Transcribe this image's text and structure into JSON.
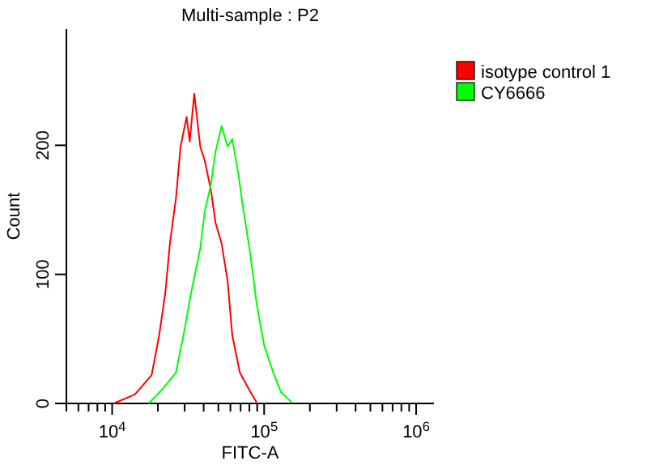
{
  "chart_data": {
    "type": "line",
    "title": "Multi-sample : P2",
    "xlabel": "FITC-A",
    "ylabel": "Count",
    "log": "x",
    "xlim": [
      5000,
      1310000
    ],
    "ylim": [
      0,
      290
    ],
    "xticks": [
      {
        "value": 5000,
        "label": null
      },
      {
        "value": 6000,
        "label": null
      },
      {
        "value": 7000,
        "label": null
      },
      {
        "value": 8000,
        "label": null
      },
      {
        "value": 9000,
        "label": null
      },
      {
        "value": 10000,
        "label": "10$^{4}$"
      },
      {
        "value": 20000,
        "label": null
      },
      {
        "value": 30000,
        "label": null
      },
      {
        "value": 40000,
        "label": null
      },
      {
        "value": 50000,
        "label": null
      },
      {
        "value": 60000,
        "label": null
      },
      {
        "value": 70000,
        "label": null
      },
      {
        "value": 80000,
        "label": null
      },
      {
        "value": 90000,
        "label": null
      },
      {
        "value": 100000,
        "label": "10$^{5}$"
      },
      {
        "value": 200000,
        "label": null
      },
      {
        "value": 300000,
        "label": null
      },
      {
        "value": 400000,
        "label": null
      },
      {
        "value": 500000,
        "label": null
      },
      {
        "value": 600000,
        "label": null
      },
      {
        "value": 700000,
        "label": null
      },
      {
        "value": 800000,
        "label": null
      },
      {
        "value": 900000,
        "label": null
      },
      {
        "value": 1000000,
        "label": "10$^{6}$"
      }
    ],
    "yticks": [
      0,
      100,
      200
    ],
    "legend": "right",
    "grid": false,
    "marker": "none",
    "series": [
      {
        "name": "isotype control 1",
        "color": "#ff0000",
        "x": [
          10230,
          14130,
          18200,
          20400,
          22400,
          24000,
          26300,
          28200,
          30900,
          32400,
          34700,
          38000,
          40700,
          44700,
          47900,
          52500,
          57500,
          61700,
          69200,
          79400,
          89100
        ],
        "values": [
          0,
          7,
          22,
          53,
          86,
          124,
          159,
          199,
          222,
          203,
          240,
          199,
          188,
          165,
          140,
          124,
          95,
          53,
          24,
          11,
          1
        ]
      },
      {
        "name": "CY6666",
        "color": "#00ff00",
        "x": [
          17400,
          21400,
          26300,
          29500,
          33100,
          38000,
          40700,
          44700,
          47900,
          52500,
          57500,
          61700,
          67600,
          72400,
          81300,
          89100,
          100000,
          114800,
          128800,
          151400
        ],
        "values": [
          0,
          11,
          24,
          53,
          86,
          120,
          149,
          170,
          195,
          215,
          199,
          205,
          178,
          153,
          115,
          78,
          45,
          24,
          9,
          1
        ]
      }
    ]
  }
}
